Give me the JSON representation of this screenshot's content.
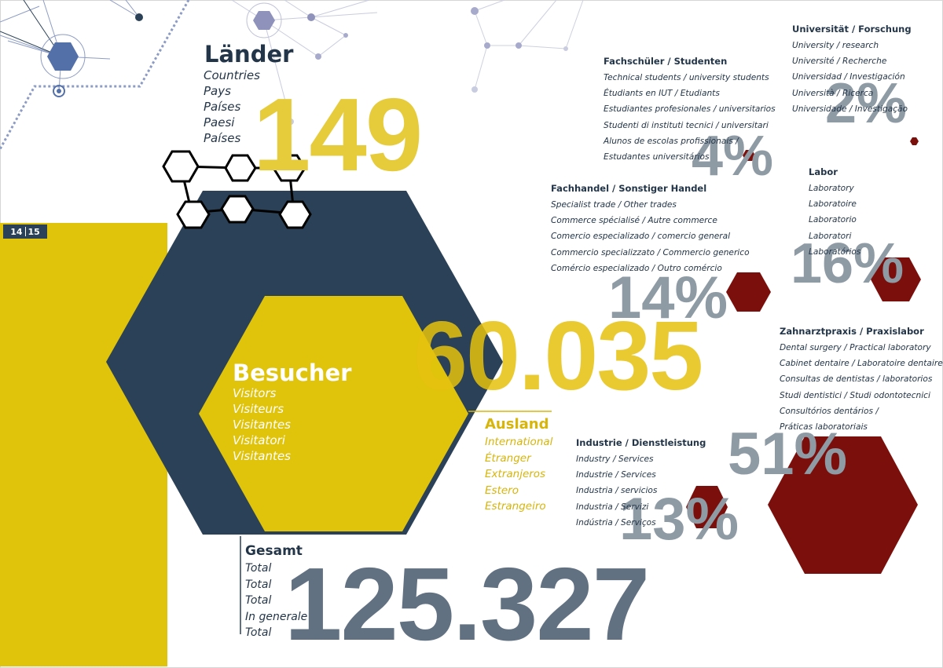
{
  "page_numbers": {
    "left": "14",
    "right": "15"
  },
  "laender": {
    "title": "Länder",
    "translations": [
      "Countries",
      "Pays",
      "Países",
      "Paesi",
      "Países"
    ],
    "value": "149"
  },
  "besucher": {
    "title": "Besucher",
    "translations": [
      "Visitors",
      "Visiteurs",
      "Visitantes",
      "Visitatori",
      "Visitantes"
    ],
    "value": "60.035"
  },
  "ausland": {
    "title": "Ausland",
    "translations": [
      "International",
      "Étranger",
      "Extranjeros",
      "Estero",
      "Estrangeiro"
    ]
  },
  "gesamt": {
    "title": "Gesamt",
    "translations": [
      "Total",
      "Total",
      "Total",
      "In generale",
      "Total"
    ],
    "value": "125.327"
  },
  "categories": {
    "fachschueler": {
      "title": "Fachschüler / Studenten",
      "translations": [
        "Technical students / university students",
        "Étudiants en IUT / Etudiants",
        "Estudiantes profesionales / universitarios",
        "Studenti di instituti tecnici / universitari",
        "Alunos de escolas profissionais /",
        "Estudantes universitários"
      ],
      "percent": "4%"
    },
    "universitaet": {
      "title": "Universität / Forschung",
      "translations": [
        "University / research",
        "Université / Recherche",
        "Universidad / Investigación",
        "Università / Ricerca",
        "Universidade / Investigação"
      ],
      "percent": "2%"
    },
    "labor": {
      "title": "Labor",
      "translations": [
        "Laboratory",
        "Laboratoire",
        "Laboratorio",
        "Laboratori",
        "Laboratórios"
      ],
      "percent": "16%"
    },
    "fachhandel": {
      "title": "Fachhandel / Sonstiger Handel",
      "translations": [
        "Specialist trade / Other trades",
        "Commerce spécialisé / Autre commerce",
        "Comercio especializado / comercio general",
        "Commercio specializzato / Commercio generico",
        "Comércio especializado / Outro comércio"
      ],
      "percent": "14%"
    },
    "zahnarzt": {
      "title": "Zahnarztpraxis / Praxislabor",
      "translations": [
        "Dental surgery / Practical laboratory",
        "Cabinet dentaire / Laboratoire dentaire",
        "Consultas de dentistas / laboratorios",
        "Studi dentistici / Studi odontotecnici",
        "Consultórios dentários /",
        "Práticas laboratoriais"
      ],
      "percent": "51%"
    },
    "industrie": {
      "title": "Industrie / Dienstleistung",
      "translations": [
        "Industry / Services",
        "Industrie / Services",
        "Industria / servicios",
        "Industria / Servizi",
        "Indústria / Serviços"
      ],
      "percent": "13%"
    }
  },
  "colors": {
    "navy": "#2a4157",
    "yellow": "#e0c30b",
    "slate": "#617181",
    "grey": "#8e9aa4",
    "maroon": "#7b0f0c",
    "network": "#6f80ad"
  }
}
